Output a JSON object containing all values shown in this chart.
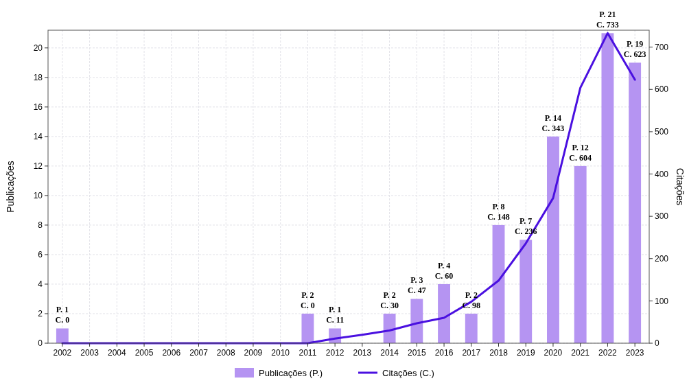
{
  "chart_data": {
    "type": "bar",
    "ylabel": "Publicações",
    "y2label": "Citações",
    "categories": [
      "2002",
      "2003",
      "2004",
      "2005",
      "2006",
      "2007",
      "2008",
      "2009",
      "2010",
      "2011",
      "2012",
      "2013",
      "2014",
      "2015",
      "2016",
      "2017",
      "2018",
      "2019",
      "2020",
      "2021",
      "2022",
      "2023"
    ],
    "series": [
      {
        "name": "Publicações (P.)",
        "color": "#b594f2",
        "values": [
          1,
          0,
          0,
          0,
          0,
          0,
          0,
          0,
          0,
          2,
          1,
          0,
          2,
          3,
          4,
          2,
          8,
          7,
          14,
          12,
          21,
          19
        ],
        "value_labels": [
          "P. 1\nC. 0",
          null,
          null,
          null,
          null,
          null,
          null,
          null,
          null,
          "P. 2\nC. 0",
          "P. 1\nC. 11",
          null,
          "P. 2\nC. 30",
          "P. 3\nC. 47",
          "P. 4\nC. 60",
          "P. 2\nC. 98",
          "P. 8\nC. 148",
          "P. 7\nC. 236",
          "P. 14\nC. 343",
          "P. 12\nC. 604",
          "P. 21\nC. 733",
          "P. 19\nC. 623"
        ]
      },
      {
        "name": "Citações (C.)",
        "type": "line",
        "axis": "y2",
        "color": "#4a10e0",
        "values": [
          0,
          0,
          0,
          0,
          0,
          0,
          0,
          0,
          0,
          0,
          11,
          20,
          30,
          47,
          60,
          98,
          148,
          236,
          343,
          604,
          733,
          623
        ]
      }
    ],
    "ylim": [
      0,
      21.2
    ],
    "yticks": [
      0,
      2,
      4,
      6,
      8,
      10,
      12,
      14,
      16,
      18,
      20
    ],
    "y2lim": [
      0,
      740
    ],
    "y2ticks": [
      0,
      100,
      200,
      300,
      400,
      500,
      600,
      700
    ],
    "grid": true,
    "legend": "bottom",
    "marker": "none",
    "line_style": "solid"
  }
}
